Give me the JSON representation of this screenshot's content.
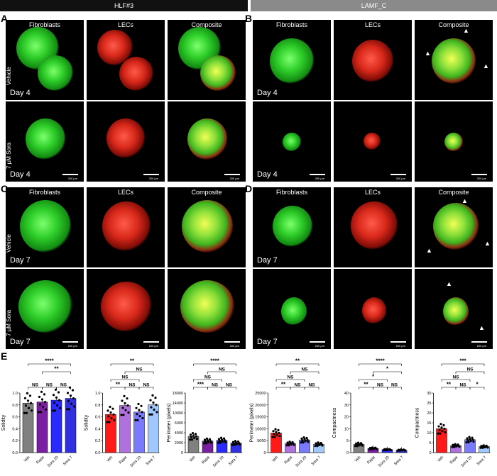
{
  "headers": {
    "left": "HLF#3",
    "right": "LAMF_C"
  },
  "panel_letters": [
    "A",
    "B",
    "C",
    "D",
    "E"
  ],
  "column_labels": [
    "Fibroblasts",
    "LECs",
    "Composite"
  ],
  "row_labels": [
    "Vehicle",
    "7 µM Sora"
  ],
  "day_labels": {
    "d4": "Day 4",
    "d7": "Day 7"
  },
  "scale_text": "200 µm",
  "arrow_glyph": "▲",
  "chart_data": [
    {
      "type": "bar",
      "ylabel": "Solidity",
      "categories": [
        "Veh",
        "Rapa",
        "Sora 20",
        "Sora 7"
      ],
      "values": [
        0.83,
        0.85,
        0.88,
        0.91
      ],
      "ylim": [
        0,
        1.0
      ],
      "yticks": [
        "0.0",
        "0.2",
        "0.4",
        "0.6",
        "0.8",
        "1.0"
      ],
      "colors": [
        "#808080",
        "#7b1fa2",
        "#2a2aff",
        "#3030e0"
      ],
      "sig": [
        {
          "label": "NS",
          "a": 0,
          "b": 1
        },
        {
          "label": "NS",
          "a": 1,
          "b": 2
        },
        {
          "label": "NS",
          "a": 2,
          "b": 3
        },
        {
          "label": "**",
          "a": 1,
          "b": 3
        },
        {
          "label": "****",
          "a": 0,
          "b": 3
        }
      ]
    },
    {
      "type": "bar",
      "ylabel": "Solidity",
      "categories": [
        "Veh",
        "Rapa",
        "Sora 20",
        "Sora 7"
      ],
      "values": [
        0.64,
        0.79,
        0.68,
        0.8
      ],
      "ylim": [
        0,
        1.0
      ],
      "yticks": [
        "0.0",
        "0.2",
        "0.4",
        "0.6",
        "0.8",
        "1.0"
      ],
      "colors": [
        "#ff1a1a",
        "#b070e0",
        "#7a7aff",
        "#a0c8ff"
      ],
      "sig": [
        {
          "label": "**",
          "a": 0,
          "b": 1
        },
        {
          "label": "NS",
          "a": 1,
          "b": 2
        },
        {
          "label": "NS",
          "a": 2,
          "b": 3
        },
        {
          "label": "NS",
          "a": 0,
          "b": 2
        },
        {
          "label": "NS",
          "a": 1,
          "b": 3
        },
        {
          "label": "**",
          "a": 0,
          "b": 3
        }
      ]
    },
    {
      "type": "bar",
      "ylabel": "Perimeter (pixels)",
      "categories": [
        "Veh",
        "Rapa",
        "Sora 20",
        "Sora 7"
      ],
      "values": [
        4900,
        3500,
        3700,
        2900
      ],
      "ylim": [
        0,
        18000
      ],
      "yticks": [
        "0",
        "2000",
        "4000",
        "6000",
        "10000",
        "14000",
        "18000"
      ],
      "colors": [
        "#808080",
        "#7b1fa2",
        "#2a2aff",
        "#3030e0"
      ],
      "sig": [
        {
          "label": "***",
          "a": 0,
          "b": 1
        },
        {
          "label": "NS",
          "a": 1,
          "b": 2
        },
        {
          "label": "NS",
          "a": 2,
          "b": 3
        },
        {
          "label": "NS",
          "a": 0,
          "b": 2
        },
        {
          "label": "NS",
          "a": 1,
          "b": 3
        },
        {
          "label": "****",
          "a": 0,
          "b": 3
        }
      ]
    },
    {
      "type": "bar",
      "ylabel": "Perimeter (pixels)",
      "categories": [
        "Veh",
        "Rapa",
        "Sora 20",
        "Sora 7"
      ],
      "values": [
        8200,
        3800,
        5300,
        3500
      ],
      "ylim": [
        0,
        25000
      ],
      "yticks": [
        "0",
        "5000",
        "10000",
        "15000",
        "20000",
        "25000"
      ],
      "colors": [
        "#ff1a1a",
        "#b070e0",
        "#7a7aff",
        "#a0c8ff"
      ],
      "sig": [
        {
          "label": "**",
          "a": 0,
          "b": 1
        },
        {
          "label": "NS",
          "a": 1,
          "b": 2
        },
        {
          "label": "NS",
          "a": 2,
          "b": 3
        },
        {
          "label": "NS",
          "a": 0,
          "b": 2
        },
        {
          "label": "NS",
          "a": 1,
          "b": 3
        },
        {
          "label": "**",
          "a": 0,
          "b": 3
        }
      ]
    },
    {
      "type": "bar",
      "ylabel": "Compactness",
      "categories": [
        "Veh",
        "Rapa",
        "Sora 20",
        "Sora 7"
      ],
      "values": [
        5.5,
        2.8,
        2.0,
        1.7
      ],
      "ylim": [
        0,
        40
      ],
      "yticks": [
        "0",
        "5",
        "10",
        "20",
        "30",
        "40"
      ],
      "colors": [
        "#808080",
        "#7b1fa2",
        "#2a2aff",
        "#3030e0"
      ],
      "sig": [
        {
          "label": "**",
          "a": 0,
          "b": 1
        },
        {
          "label": "NS",
          "a": 1,
          "b": 2
        },
        {
          "label": "NS",
          "a": 2,
          "b": 3
        },
        {
          "label": "*",
          "a": 0,
          "b": 2
        },
        {
          "label": "*",
          "a": 1,
          "b": 3
        },
        {
          "label": "****",
          "a": 0,
          "b": 3
        }
      ]
    },
    {
      "type": "bar",
      "ylabel": "Compactness",
      "categories": [
        "Veh",
        "Rapa",
        "Sora 20",
        "Sora 7"
      ],
      "values": [
        12,
        3.5,
        6.5,
        3.0
      ],
      "ylim": [
        0,
        30
      ],
      "yticks": [
        "0",
        "5",
        "10",
        "15",
        "20",
        "25",
        "30"
      ],
      "colors": [
        "#ff1a1a",
        "#b070e0",
        "#7a7aff",
        "#a0c8ff"
      ],
      "sig": [
        {
          "label": "**",
          "a": 0,
          "b": 1
        },
        {
          "label": "NS",
          "a": 1,
          "b": 2
        },
        {
          "label": "*",
          "a": 2,
          "b": 3
        },
        {
          "label": "NS",
          "a": 0,
          "b": 2
        },
        {
          "label": "NS",
          "a": 1,
          "b": 3
        },
        {
          "label": "***",
          "a": 0,
          "b": 3
        }
      ]
    }
  ]
}
